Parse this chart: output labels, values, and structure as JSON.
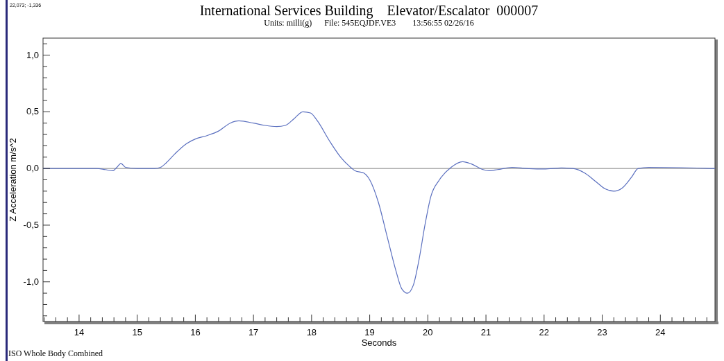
{
  "chart_data": {
    "type": "line",
    "title": "International Services Building    Elevator/Escalator  000007",
    "subtitle": "Units: milli(g)      File: 545EQJDF.VE3        13:56:55 02/26/16",
    "xlabel": "Seconds",
    "ylabel": "Z Acceleration m/s^2",
    "annotations": [
      "22,073; -1,336",
      "ISO Whole Body Combined"
    ],
    "xlim": [
      13.38,
      24.94
    ],
    "ylim": [
      -1.35,
      1.15
    ],
    "xticks": [
      {
        "value": 13.4,
        "label": null
      },
      {
        "value": 13.6,
        "label": null
      },
      {
        "value": 13.8,
        "label": null
      },
      14,
      {
        "value": 14.2,
        "label": null
      },
      {
        "value": 14.4,
        "label": null
      },
      {
        "value": 14.6,
        "label": null
      },
      {
        "value": 14.8,
        "label": null
      },
      15,
      {
        "value": 15.2,
        "label": null
      },
      {
        "value": 15.4,
        "label": null
      },
      {
        "value": 15.6,
        "label": null
      },
      {
        "value": 15.8,
        "label": null
      },
      16,
      {
        "value": 16.2,
        "label": null
      },
      {
        "value": 16.4,
        "label": null
      },
      {
        "value": 16.6,
        "label": null
      },
      {
        "value": 16.8,
        "label": null
      },
      17,
      {
        "value": 17.2,
        "label": null
      },
      {
        "value": 17.4,
        "label": null
      },
      {
        "value": 17.6,
        "label": null
      },
      {
        "value": 17.8,
        "label": null
      },
      18,
      {
        "value": 18.2,
        "label": null
      },
      {
        "value": 18.4,
        "label": null
      },
      {
        "value": 18.6,
        "label": null
      },
      {
        "value": 18.8,
        "label": null
      },
      19,
      {
        "value": 19.2,
        "label": null
      },
      {
        "value": 19.4,
        "label": null
      },
      {
        "value": 19.6,
        "label": null
      },
      {
        "value": 19.8,
        "label": null
      },
      20,
      {
        "value": 20.2,
        "label": null
      },
      {
        "value": 20.4,
        "label": null
      },
      {
        "value": 20.6,
        "label": null
      },
      {
        "value": 20.8,
        "label": null
      },
      21,
      {
        "value": 21.2,
        "label": null
      },
      {
        "value": 21.4,
        "label": null
      },
      {
        "value": 21.6,
        "label": null
      },
      {
        "value": 21.8,
        "label": null
      },
      22,
      {
        "value": 22.2,
        "label": null
      },
      {
        "value": 22.4,
        "label": null
      },
      {
        "value": 22.6,
        "label": null
      },
      {
        "value": 22.8,
        "label": null
      },
      23,
      {
        "value": 23.2,
        "label": null
      },
      {
        "value": 23.4,
        "label": null
      },
      {
        "value": 23.6,
        "label": null
      },
      {
        "value": 23.8,
        "label": null
      },
      24,
      {
        "value": 24.2,
        "label": null
      },
      {
        "value": 24.4,
        "label": null
      },
      {
        "value": 24.6,
        "label": null
      },
      {
        "value": 24.8,
        "label": null
      }
    ],
    "yticks": [
      {
        "value": -1.3,
        "label": null
      },
      {
        "value": -1.2,
        "label": null
      },
      {
        "value": -1.1,
        "label": null
      },
      {
        "value": -1,
        "label": "-1,0"
      },
      {
        "value": -0.9,
        "label": null
      },
      {
        "value": -0.8,
        "label": null
      },
      {
        "value": -0.7,
        "label": null
      },
      {
        "value": -0.6,
        "label": null
      },
      {
        "value": -0.5,
        "label": "-0,5"
      },
      {
        "value": -0.4,
        "label": null
      },
      {
        "value": -0.3,
        "label": null
      },
      {
        "value": -0.2,
        "label": null
      },
      {
        "value": -0.1,
        "label": null
      },
      {
        "value": 0,
        "label": "0,0"
      },
      {
        "value": 0.1,
        "label": null
      },
      {
        "value": 0.2,
        "label": null
      },
      {
        "value": 0.3,
        "label": null
      },
      {
        "value": 0.4,
        "label": null
      },
      {
        "value": 0.5,
        "label": "0,5"
      },
      {
        "value": 0.6,
        "label": null
      },
      {
        "value": 0.7,
        "label": null
      },
      {
        "value": 0.8,
        "label": null
      },
      {
        "value": 0.9,
        "label": null
      },
      {
        "value": 1,
        "label": "1,0"
      },
      {
        "value": 1.1,
        "label": null
      }
    ],
    "grid": false,
    "line_style": "solid",
    "marker": "none",
    "ref_lines": [
      {
        "axis": "y",
        "value": 0,
        "color": "#808080"
      }
    ],
    "series": [
      {
        "color": "#5a6fbf",
        "x": [
          13.38,
          14.3,
          14.45,
          14.58,
          14.65,
          14.72,
          14.8,
          15.0,
          15.3,
          15.4,
          15.5,
          15.65,
          15.85,
          16.0,
          16.2,
          16.4,
          16.6,
          16.75,
          17.0,
          17.2,
          17.4,
          17.55,
          17.7,
          17.85,
          17.98,
          18.1,
          18.3,
          18.5,
          18.65,
          18.75,
          18.9,
          19.0,
          19.15,
          19.3,
          19.45,
          19.55,
          19.65,
          19.75,
          19.85,
          19.95,
          20.05,
          20.2,
          20.4,
          20.6,
          20.75,
          20.95,
          21.05,
          21.2,
          21.45,
          21.7,
          22.0,
          22.3,
          22.5,
          22.7,
          22.9,
          23.05,
          23.2,
          23.35,
          23.5,
          23.62,
          23.8,
          24.94
        ],
        "values": [
          0,
          0,
          -0.01,
          -0.02,
          0.01,
          0.045,
          0.01,
          0,
          0,
          0.01,
          0.05,
          0.13,
          0.22,
          0.26,
          0.29,
          0.33,
          0.4,
          0.42,
          0.4,
          0.38,
          0.37,
          0.38,
          0.44,
          0.5,
          0.49,
          0.42,
          0.25,
          0.1,
          0.02,
          -0.02,
          -0.04,
          -0.1,
          -0.3,
          -0.6,
          -0.9,
          -1.06,
          -1.1,
          -1.03,
          -0.8,
          -0.5,
          -0.25,
          -0.1,
          0.01,
          0.06,
          0.04,
          -0.01,
          -0.02,
          -0.01,
          0.01,
          0,
          -0.005,
          0.005,
          0,
          -0.04,
          -0.12,
          -0.18,
          -0.2,
          -0.17,
          -0.08,
          0,
          0.01,
          0
        ]
      }
    ]
  }
}
